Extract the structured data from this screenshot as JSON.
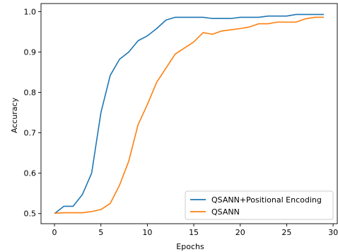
{
  "chart_data": {
    "type": "line",
    "xlabel": "Epochs",
    "ylabel": "Accuracy",
    "xlim": [
      -1.45,
      30.45
    ],
    "ylim": [
      0.475,
      1.02
    ],
    "xticks": [
      0,
      5,
      10,
      15,
      20,
      25,
      30
    ],
    "yticks": [
      0.5,
      0.6,
      0.7,
      0.8,
      0.9,
      1.0
    ],
    "xtick_labels": [
      "0",
      "5",
      "10",
      "15",
      "20",
      "25",
      "30"
    ],
    "ytick_labels": [
      "0.5",
      "0.6",
      "0.7",
      "0.8",
      "0.9",
      "1.0"
    ],
    "grid": false,
    "legend_position": "lower-right",
    "x": [
      0,
      1,
      2,
      3,
      4,
      5,
      6,
      7,
      8,
      9,
      10,
      11,
      12,
      13,
      14,
      15,
      16,
      17,
      18,
      19,
      20,
      21,
      22,
      23,
      24,
      25,
      26,
      27,
      28,
      29
    ],
    "series": [
      {
        "name": "QSANN+Positional Encoding",
        "color": "#1f77b4",
        "values": [
          0.5,
          0.518,
          0.518,
          0.547,
          0.6,
          0.75,
          0.842,
          0.882,
          0.9,
          0.928,
          0.94,
          0.958,
          0.979,
          0.986,
          0.986,
          0.986,
          0.986,
          0.983,
          0.983,
          0.983,
          0.986,
          0.986,
          0.986,
          0.989,
          0.989,
          0.989,
          0.993,
          0.993,
          0.993,
          0.993
        ]
      },
      {
        "name": "QSANN",
        "color": "#ff7f0e",
        "values": [
          0.501,
          0.502,
          0.502,
          0.502,
          0.505,
          0.51,
          0.525,
          0.57,
          0.63,
          0.72,
          0.77,
          0.825,
          0.86,
          0.895,
          0.91,
          0.925,
          0.948,
          0.944,
          0.952,
          0.955,
          0.958,
          0.962,
          0.97,
          0.97,
          0.974,
          0.974,
          0.974,
          0.982,
          0.986,
          0.986
        ]
      }
    ]
  }
}
